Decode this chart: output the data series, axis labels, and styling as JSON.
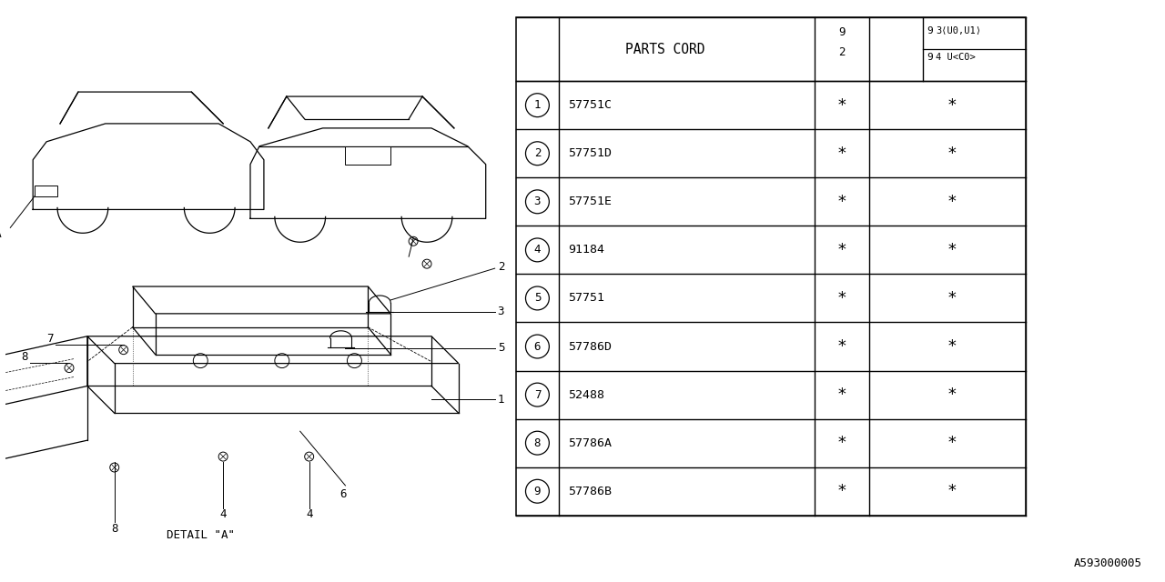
{
  "bg_color": "#ffffff",
  "line_color": "#000000",
  "watermark": "A593000005",
  "detail_label": "DETAIL \"A\"",
  "table_rows": [
    [
      "1",
      "57751C"
    ],
    [
      "2",
      "57751D"
    ],
    [
      "3",
      "57751E"
    ],
    [
      "4",
      "91184"
    ],
    [
      "5",
      "57751"
    ],
    [
      "6",
      "57786D"
    ],
    [
      "7",
      "52488"
    ],
    [
      "8",
      "57786A"
    ],
    [
      "9",
      "57786B"
    ]
  ],
  "header_parts_cord": "PARTS CORD",
  "header_col3_top": "9",
  "header_col3_mid": "3(U0,U1)",
  "header_col3_bot1": "9",
  "header_col3_bot2": "4 U<C0>",
  "header_col2_top": "9",
  "header_col2_bot": "2"
}
